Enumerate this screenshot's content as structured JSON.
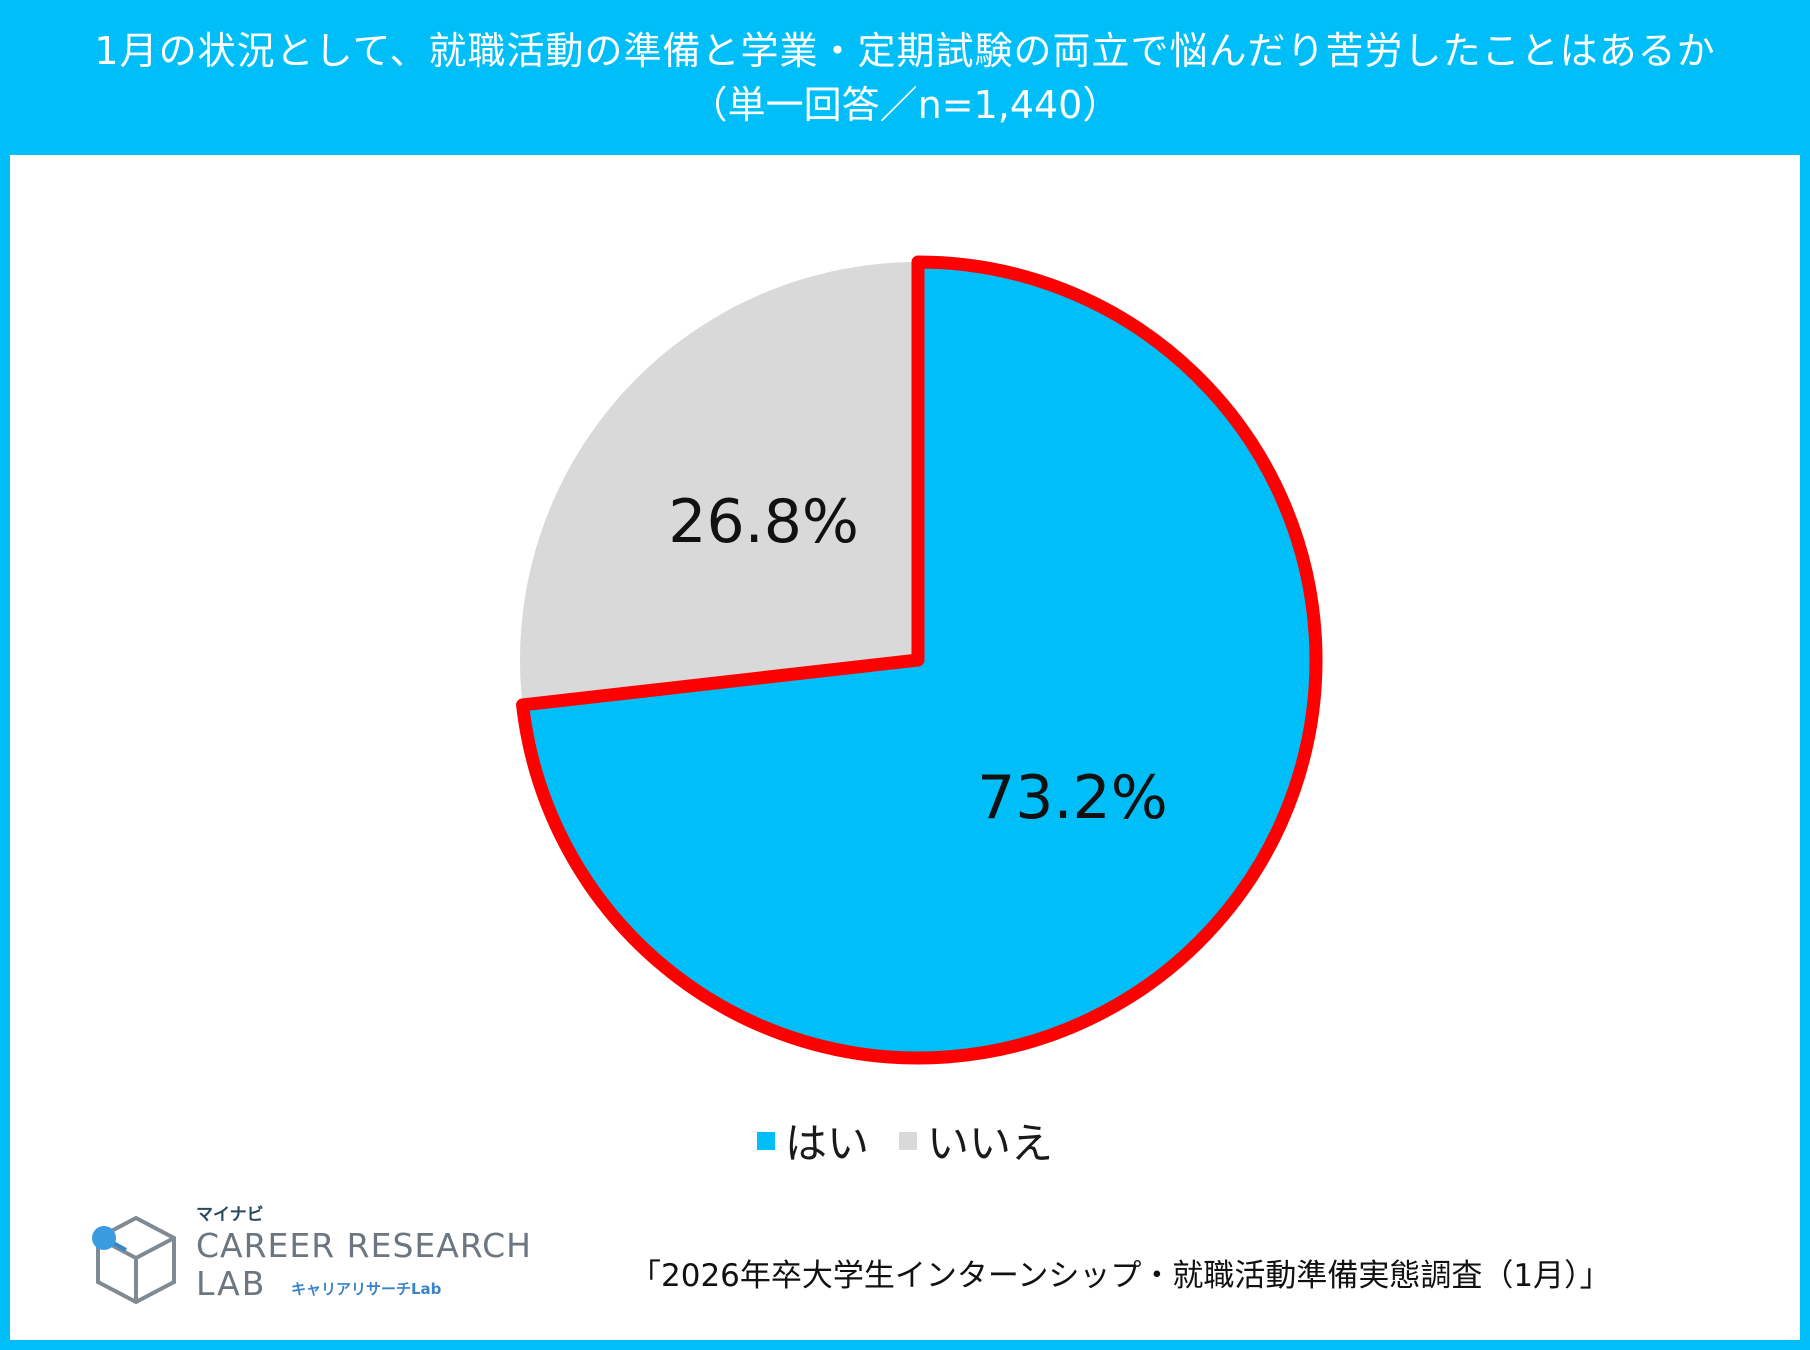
{
  "header": {
    "title": "1月の状況として、就職活動の準備と学業・定期試験の両立で悩んだり苦労したことはあるか",
    "subtitle": "（単一回答／n=1,440）"
  },
  "chart_data": {
    "type": "pie",
    "title": "1月の状況として、就職活動の準備と学業・定期試験の両立で悩んだり苦労したことはあるか",
    "subtitle": "（単一回答／n=1,440）",
    "categories": [
      "はい",
      "いいえ"
    ],
    "values": [
      73.2,
      26.8
    ],
    "labels": [
      "73.2%",
      "26.8%"
    ],
    "colors": [
      "#00bff8",
      "#d9d9d9"
    ],
    "highlight_color": "#ff0000",
    "highlighted": "はい",
    "legend_position": "bottom"
  },
  "legend": {
    "items": [
      {
        "label": "はい",
        "color": "#00bff8"
      },
      {
        "label": "いいえ",
        "color": "#d9d9d9"
      }
    ]
  },
  "logo": {
    "maker": "マイナビ",
    "main": "CAREER RESEARCH",
    "lab": "LAB",
    "sub": "キャリアリサーチLab"
  },
  "source": "「2026年卒大学生インターンシップ・就職活動準備実態調査（1月）」"
}
